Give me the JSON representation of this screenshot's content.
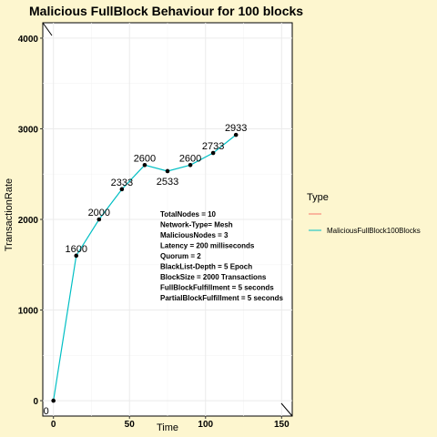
{
  "chart_data": {
    "type": "line",
    "title": "Malicious FullBlock Behaviour for 100 blocks",
    "xlabel": "Time",
    "ylabel": "TransactionRate",
    "xlim": [
      -7,
      157
    ],
    "ylim": [
      -170,
      4170
    ],
    "x_ticks": [
      0,
      50,
      100,
      150
    ],
    "y_ticks": [
      0,
      1000,
      2000,
      3000,
      4000
    ],
    "grid": true,
    "legend": {
      "title": "Type",
      "position": "right",
      "entries": [
        {
          "label": "",
          "color": "#F8766D"
        },
        {
          "label": "MaliciousFullBlock100Blocks",
          "color": "#00BFC4"
        }
      ]
    },
    "series": [
      {
        "name": "MaliciousFullBlock100Blocks",
        "color": "#00BFC4",
        "x": [
          0,
          15,
          30,
          45,
          60,
          75,
          90,
          105,
          120
        ],
        "y": [
          0,
          1600,
          2000,
          2333,
          2600,
          2533,
          2600,
          2733,
          2933
        ],
        "labels": [
          "0",
          "1600",
          "2000",
          "2333",
          "2600",
          "2533",
          "2600",
          "2733",
          "2933"
        ]
      }
    ],
    "annotations": [
      "TotalNodes = 10",
      "Network-Type= Mesh",
      "MaliciousNodes = 3",
      "Latency = 200 milliseconds",
      "Quorum = 2",
      "BlackList-Depth = 5 Epoch",
      "BlockSize = 2000 Transactions",
      "FullBlockFulfillment = 5 seconds",
      "PartialBlockFulfillment = 5 seconds"
    ]
  }
}
